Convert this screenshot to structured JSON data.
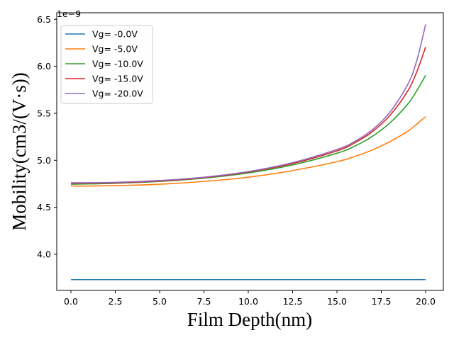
{
  "chart_data": {
    "type": "line",
    "title": "",
    "xlabel": "Film Depth(nm)",
    "ylabel": "Mobility(cm3/(V·s))",
    "y_offset_label": "1e−9",
    "xlim": [
      -0.8,
      21.0
    ],
    "ylim": [
      3.615,
      6.57
    ],
    "xticks": [
      0.0,
      2.5,
      5.0,
      7.5,
      10.0,
      12.5,
      15.0,
      17.5,
      20.0
    ],
    "xtick_labels": [
      "0.0",
      "2.5",
      "5.0",
      "7.5",
      "10.0",
      "12.5",
      "15.0",
      "17.5",
      "20.0"
    ],
    "yticks": [
      4.0,
      4.5,
      5.0,
      5.5,
      6.0,
      6.5
    ],
    "ytick_labels": [
      "4.0",
      "4.5",
      "5.0",
      "5.5",
      "6.0",
      "6.5"
    ],
    "y_unit_multiplier": "1e-9",
    "grid": false,
    "legend_position": "top-left",
    "x": [
      0,
      2.5,
      5,
      7.5,
      10,
      12.5,
      15,
      16,
      17,
      18,
      19,
      19.5,
      20
    ],
    "series": [
      {
        "name": "Vg= -0.0V",
        "color": "#1f77b4",
        "values": [
          3.73,
          3.73,
          3.73,
          3.73,
          3.73,
          3.73,
          3.73,
          3.73,
          3.73,
          3.73,
          3.73,
          3.73,
          3.73
        ]
      },
      {
        "name": "Vg= -5.0V",
        "color": "#ff7f0e",
        "values": [
          4.725,
          4.73,
          4.745,
          4.775,
          4.82,
          4.89,
          4.985,
          5.04,
          5.11,
          5.2,
          5.31,
          5.385,
          5.465
        ]
      },
      {
        "name": "Vg= -10.0V",
        "color": "#2ca02c",
        "values": [
          4.745,
          4.755,
          4.775,
          4.81,
          4.865,
          4.95,
          5.075,
          5.15,
          5.255,
          5.4,
          5.6,
          5.74,
          5.905
        ]
      },
      {
        "name": "Vg= -15.0V",
        "color": "#d62728",
        "values": [
          4.755,
          4.76,
          4.78,
          4.815,
          4.875,
          4.965,
          5.1,
          5.185,
          5.305,
          5.48,
          5.74,
          5.94,
          6.205
        ]
      },
      {
        "name": "Vg= -20.0V",
        "color": "#9467bd",
        "values": [
          4.76,
          4.765,
          4.785,
          4.82,
          4.88,
          4.975,
          5.115,
          5.2,
          5.325,
          5.515,
          5.81,
          6.06,
          6.445
        ]
      }
    ]
  }
}
